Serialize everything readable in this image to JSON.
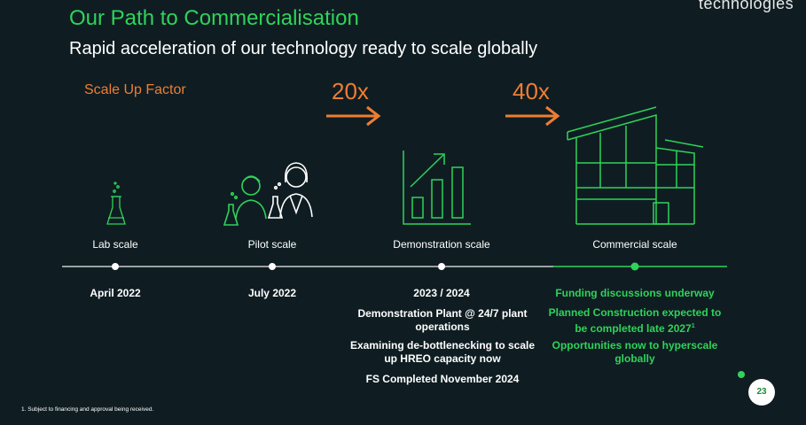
{
  "brand": "technologies",
  "title": "Our Path to Commercialisation",
  "subtitle": "Rapid acceleration of our technology ready to scale globally",
  "scale_up_label": "Scale Up Factor",
  "factors": [
    "20x",
    "40x"
  ],
  "stages": [
    {
      "label": "Lab scale",
      "date": "April 2022",
      "details": []
    },
    {
      "label": "Pilot scale",
      "date": "July 2022",
      "details": []
    },
    {
      "label": "Demonstration scale",
      "date": "2023 / 2024",
      "details": [
        "Demonstration Plant @ 24/7 plant operations",
        "Examining de-bottlenecking to scale up HREO capacity now",
        "FS Completed November 2024"
      ]
    },
    {
      "label": "Commercial scale",
      "date": "",
      "details": [
        "Funding discussions underway",
        "Planned Construction expected to be completed late 2027",
        "Opportunities now to hyperscale globally"
      ]
    }
  ],
  "footnote": "1. Subject to financing and approval being received.",
  "page_number": "23",
  "colors": {
    "background": "#0f1d22",
    "accent_green": "#2fd35a",
    "accent_orange": "#ee7d33"
  },
  "icons": [
    "flask-icon",
    "scientists-icon",
    "growth-chart-icon",
    "factory-icon",
    "arrow-right-icon"
  ]
}
